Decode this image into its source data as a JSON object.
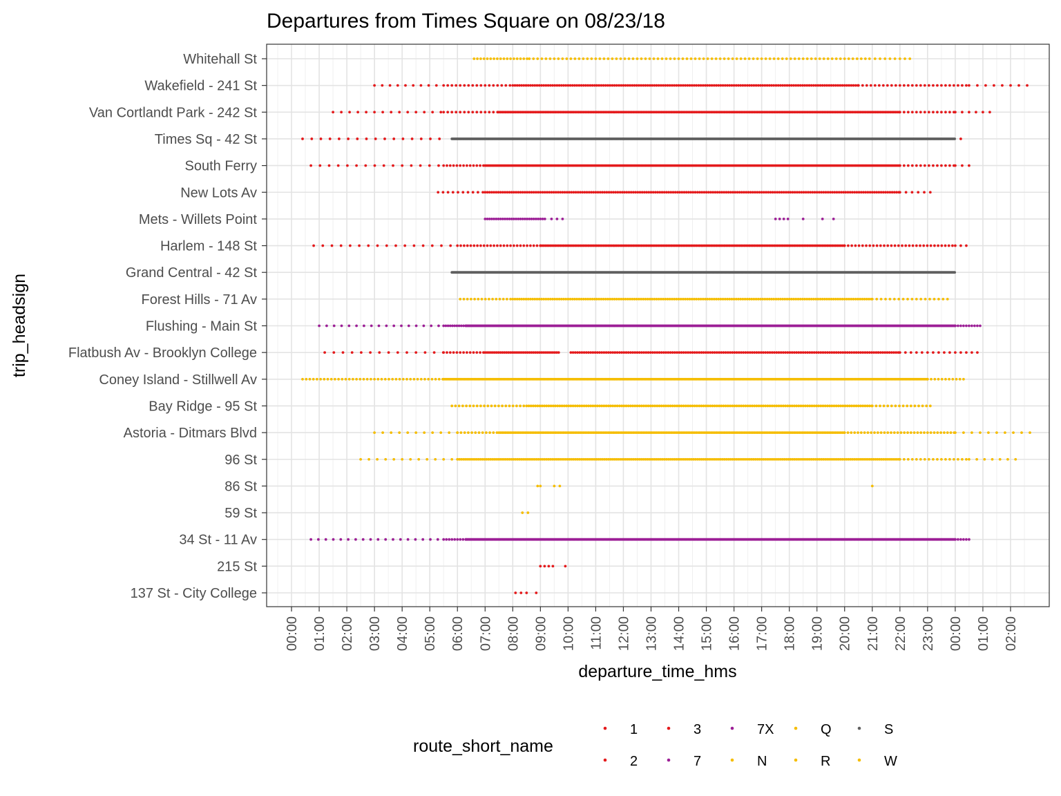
{
  "chart_data": {
    "type": "scatter",
    "title": "Departures from Times Square on 08/23/18",
    "xlabel": "departure_time_hms",
    "ylabel": "trip_headsign",
    "x_tick_labels": [
      "00:00",
      "01:00",
      "02:00",
      "03:00",
      "04:00",
      "05:00",
      "06:00",
      "07:00",
      "08:00",
      "09:00",
      "10:00",
      "11:00",
      "12:00",
      "13:00",
      "14:00",
      "15:00",
      "16:00",
      "17:00",
      "18:00",
      "19:00",
      "20:00",
      "21:00",
      "22:00",
      "23:00",
      "00:00",
      "01:00",
      "02:00"
    ],
    "xlim_hours": [
      -0.9,
      27.4
    ],
    "categories": [
      "137 St - City College",
      "215 St",
      "34 St - 11 Av",
      "59 St",
      "86 St",
      "96 St",
      "Astoria - Ditmars Blvd",
      "Bay Ridge - 95 St",
      "Coney Island - Stillwell Av",
      "Flatbush Av - Brooklyn College",
      "Flushing - Main St",
      "Forest Hills - 71 Av",
      "Grand Central - 42 St",
      "Harlem - 148 St",
      "Mets - Willets Point",
      "New Lots Av",
      "South Ferry",
      "Times Sq - 42 St",
      "Van Cortlandt Park - 242 St",
      "Wakefield - 241 St",
      "Whitehall St"
    ],
    "grid": true,
    "legend": {
      "title": "route_short_name",
      "position": "bottom",
      "entries": [
        {
          "label": "1",
          "color": "#e41a1c"
        },
        {
          "label": "2",
          "color": "#e41a1c"
        },
        {
          "label": "3",
          "color": "#e41a1c"
        },
        {
          "label": "7",
          "color": "#9c1f96"
        },
        {
          "label": "7X",
          "color": "#9c1f96"
        },
        {
          "label": "N",
          "color": "#f5bd00"
        },
        {
          "label": "Q",
          "color": "#f5bd00"
        },
        {
          "label": "R",
          "color": "#f5bd00"
        },
        {
          "label": "S",
          "color": "#606060"
        },
        {
          "label": "W",
          "color": "#f5bd00"
        }
      ]
    },
    "series": [
      {
        "headsign": "Whitehall St",
        "color": "#f5bd00",
        "segments": [
          [
            6.6,
            8.6,
            0.12
          ],
          [
            8.6,
            20.9,
            0.15
          ],
          [
            21.1,
            22.5,
            0.18
          ]
        ]
      },
      {
        "headsign": "Wakefield - 241 St",
        "color": "#e41a1c",
        "segments": [
          [
            3.0,
            5.5,
            0.28
          ],
          [
            5.5,
            8.0,
            0.15
          ],
          [
            8.0,
            20.5,
            0.08
          ],
          [
            20.5,
            24.5,
            0.15
          ],
          [
            24.5,
            26.7,
            0.3
          ]
        ]
      },
      {
        "headsign": "Van Cortlandt Park - 242 St",
        "color": "#e41a1c",
        "segments": [
          [
            1.5,
            5.5,
            0.3
          ],
          [
            5.5,
            7.5,
            0.15
          ],
          [
            7.5,
            22.0,
            0.06
          ],
          [
            22.0,
            24.0,
            0.15
          ],
          [
            24.0,
            25.3,
            0.25
          ]
        ]
      },
      {
        "headsign": "Times Sq - 42 St",
        "color": "#e41a1c",
        "segments": [
          [
            0.4,
            5.5,
            0.33
          ]
        ]
      },
      {
        "headsign": "Times Sq - 42 St",
        "color": "#606060",
        "segments": [
          [
            5.8,
            24.0,
            0.03
          ]
        ]
      },
      {
        "headsign": "Times Sq - 42 St",
        "color": "#e41a1c",
        "segments": [
          [
            24.2,
            24.2,
            1.0
          ]
        ]
      },
      {
        "headsign": "South Ferry",
        "color": "#e41a1c",
        "segments": [
          [
            0.7,
            5.5,
            0.33
          ],
          [
            5.5,
            7.0,
            0.12
          ],
          [
            7.0,
            22.0,
            0.05
          ],
          [
            22.0,
            24.0,
            0.15
          ],
          [
            24.0,
            24.5,
            0.25
          ]
        ]
      },
      {
        "headsign": "New Lots Av",
        "color": "#e41a1c",
        "segments": [
          [
            5.3,
            7.0,
            0.18
          ],
          [
            7.0,
            22.0,
            0.08
          ],
          [
            22.0,
            23.3,
            0.22
          ]
        ]
      },
      {
        "headsign": "Mets - Willets Point",
        "color": "#9c1f96",
        "segments": [
          [
            7.0,
            9.2,
            0.08
          ],
          [
            9.4,
            9.8,
            0.2
          ],
          [
            17.5,
            18.0,
            0.15
          ],
          [
            18.5,
            18.5,
            1.0
          ],
          [
            19.2,
            19.6,
            0.4
          ]
        ]
      },
      {
        "headsign": "Harlem - 148 St",
        "color": "#e41a1c",
        "segments": [
          [
            0.8,
            6.0,
            0.33
          ],
          [
            6.0,
            9.0,
            0.12
          ],
          [
            9.0,
            20.0,
            0.06
          ],
          [
            20.0,
            24.0,
            0.13
          ],
          [
            24.0,
            24.4,
            0.2
          ]
        ]
      },
      {
        "headsign": "Grand Central - 42 St",
        "color": "#606060",
        "segments": [
          [
            5.8,
            24.0,
            0.03
          ]
        ]
      },
      {
        "headsign": "Forest Hills - 71 Av",
        "color": "#f5bd00",
        "segments": [
          [
            6.1,
            8.0,
            0.13
          ],
          [
            8.0,
            21.0,
            0.08
          ],
          [
            21.0,
            23.8,
            0.16
          ]
        ]
      },
      {
        "headsign": "Flushing - Main St",
        "color": "#9c1f96",
        "segments": [
          [
            1.0,
            5.5,
            0.27
          ],
          [
            5.5,
            6.3,
            0.08
          ],
          [
            6.3,
            24.0,
            0.03
          ],
          [
            24.0,
            24.9,
            0.1
          ]
        ]
      },
      {
        "headsign": "Flatbush Av - Brooklyn College",
        "color": "#e41a1c",
        "segments": [
          [
            1.2,
            5.5,
            0.33
          ],
          [
            5.5,
            7.0,
            0.12
          ],
          [
            7.0,
            9.7,
            0.07
          ],
          [
            10.1,
            22.0,
            0.08
          ],
          [
            22.0,
            24.9,
            0.2
          ]
        ]
      },
      {
        "headsign": "Coney Island - Stillwell Av",
        "color": "#f5bd00",
        "segments": [
          [
            0.4,
            5.5,
            0.13
          ],
          [
            5.5,
            23.0,
            0.05
          ],
          [
            23.0,
            24.3,
            0.13
          ]
        ]
      },
      {
        "headsign": "Bay Ridge - 95 St",
        "color": "#f5bd00",
        "segments": [
          [
            5.8,
            8.5,
            0.13
          ],
          [
            8.5,
            21.0,
            0.08
          ],
          [
            21.0,
            23.1,
            0.14
          ]
        ]
      },
      {
        "headsign": "Astoria - Ditmars Blvd",
        "color": "#f5bd00",
        "segments": [
          [
            3.0,
            6.0,
            0.3
          ],
          [
            6.0,
            7.5,
            0.13
          ],
          [
            7.5,
            20.0,
            0.06
          ],
          [
            20.0,
            24.0,
            0.12
          ],
          [
            24.0,
            26.7,
            0.3
          ]
        ]
      },
      {
        "headsign": "96 St",
        "color": "#f5bd00",
        "segments": [
          [
            2.5,
            6.0,
            0.3
          ],
          [
            6.0,
            22.0,
            0.07
          ],
          [
            22.0,
            24.5,
            0.15
          ],
          [
            24.5,
            26.2,
            0.28
          ]
        ]
      },
      {
        "headsign": "86 St",
        "color": "#f5bd00",
        "segments": [
          [
            8.9,
            9.0,
            0.1
          ],
          [
            9.5,
            9.7,
            0.2
          ],
          [
            21.0,
            21.0,
            1.0
          ]
        ]
      },
      {
        "headsign": "59 St",
        "color": "#f5bd00",
        "segments": [
          [
            8.35,
            8.55,
            0.2
          ]
        ]
      },
      {
        "headsign": "34 St - 11 Av",
        "color": "#9c1f96",
        "segments": [
          [
            0.7,
            5.5,
            0.27
          ],
          [
            5.5,
            6.3,
            0.1
          ],
          [
            6.3,
            24.0,
            0.03
          ],
          [
            24.0,
            24.5,
            0.1
          ]
        ]
      },
      {
        "headsign": "215 St",
        "color": "#e41a1c",
        "segments": [
          [
            9.0,
            9.5,
            0.15
          ],
          [
            9.9,
            9.9,
            1.0
          ]
        ]
      },
      {
        "headsign": "137 St - City College",
        "color": "#e41a1c",
        "segments": [
          [
            8.1,
            8.6,
            0.2
          ],
          [
            8.85,
            8.85,
            1.0
          ]
        ]
      }
    ]
  }
}
